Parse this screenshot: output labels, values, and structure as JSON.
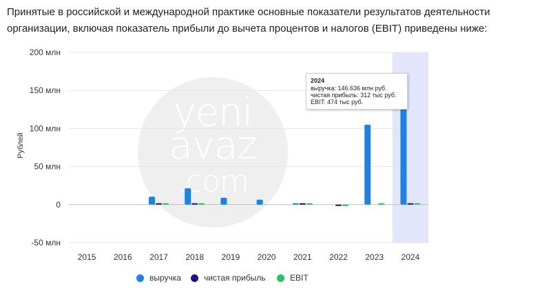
{
  "intro_text": "Принятые в российской и международной практике основные показатели результатов деятельности организации, включая показатель прибыли до вычета процентов и налогов (EBIT) приведены ниже:",
  "watermark": "yeni avaz .com",
  "tooltip": {
    "title": "2024",
    "lines": [
      "выручка: 146.636 млн руб.",
      "чистая прибыль: 312 тыс руб.",
      "EBIT: 474 тыс руб."
    ]
  },
  "chart_data": {
    "type": "bar",
    "ylabel": "Рублей",
    "ylim": [
      -50,
      200
    ],
    "yticks": [
      -50,
      0,
      50,
      100,
      150,
      200
    ],
    "ytick_labels": [
      "-50 млн",
      "0",
      "50 млн",
      "100 млн",
      "150 млн",
      "200 млн"
    ],
    "grid": true,
    "legend_position": "bottom",
    "highlighted_category": "2024",
    "categories": [
      "2015",
      "2016",
      "2017",
      "2018",
      "2019",
      "2020",
      "2021",
      "2022",
      "2023",
      "2024"
    ],
    "series": [
      {
        "name": "выручка",
        "color": "#1a84e6",
        "values": [
          0,
          0,
          10.5,
          21.5,
          9,
          6.5,
          1.2,
          0,
          105,
          146.636
        ]
      },
      {
        "name": "чистая прибыль",
        "color": "#14148a",
        "values": [
          0,
          0,
          0.7,
          1.2,
          0,
          0,
          0.3,
          -1,
          0,
          0.312
        ]
      },
      {
        "name": "EBIT",
        "color": "#22c55e",
        "values": [
          0,
          0,
          0.9,
          1.5,
          0,
          0,
          0.4,
          -1,
          0.6,
          0.474
        ]
      }
    ]
  }
}
